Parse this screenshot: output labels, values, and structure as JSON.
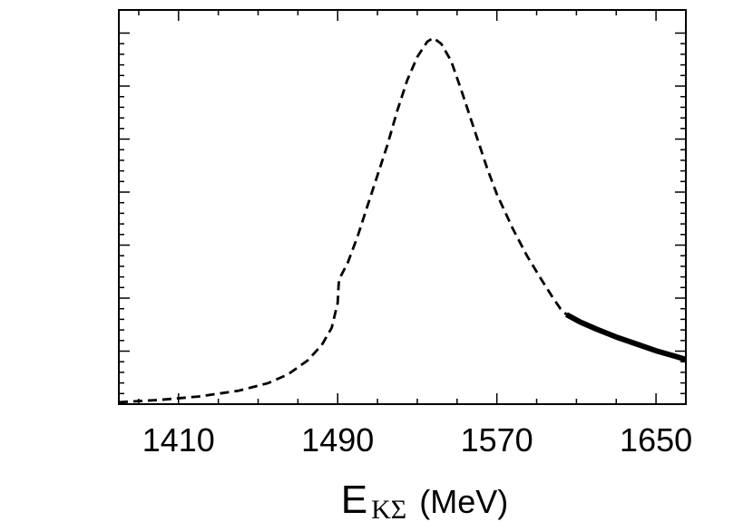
{
  "chart_data": {
    "type": "line",
    "title": "",
    "xlabel": {
      "symbol": "E",
      "subscript": "KΣ",
      "unit": "(MeV)"
    },
    "ylabel": "",
    "xlim": [
      1380,
      1665
    ],
    "ylim": [
      0,
      1
    ],
    "x_ticks": [
      1410,
      1490,
      1570,
      1650
    ],
    "y_ticks_visible_labels": false,
    "grid": false,
    "legend": "none",
    "series": [
      {
        "style": "dashed",
        "color": "#000000",
        "points": [
          [
            1380,
            0.005
          ],
          [
            1400,
            0.011
          ],
          [
            1420,
            0.02
          ],
          [
            1440,
            0.035
          ],
          [
            1455,
            0.055
          ],
          [
            1465,
            0.078
          ],
          [
            1475,
            0.115
          ],
          [
            1482,
            0.155
          ],
          [
            1487,
            0.2
          ],
          [
            1490,
            0.265
          ],
          [
            1490.5,
            0.315
          ],
          [
            1491,
            0.33
          ],
          [
            1495,
            0.37
          ],
          [
            1500,
            0.44
          ],
          [
            1505,
            0.52
          ],
          [
            1510,
            0.6
          ],
          [
            1515,
            0.68
          ],
          [
            1520,
            0.77
          ],
          [
            1525,
            0.85
          ],
          [
            1530,
            0.91
          ],
          [
            1535,
            0.95
          ],
          [
            1538,
            0.96
          ],
          [
            1542,
            0.945
          ],
          [
            1547,
            0.9
          ],
          [
            1552,
            0.825
          ],
          [
            1558,
            0.73
          ],
          [
            1565,
            0.62
          ],
          [
            1570,
            0.55
          ],
          [
            1578,
            0.46
          ],
          [
            1585,
            0.39
          ],
          [
            1592,
            0.33
          ],
          [
            1598,
            0.28
          ],
          [
            1602,
            0.25
          ],
          [
            1605,
            0.235
          ]
        ]
      },
      {
        "style": "solid",
        "color": "#000000",
        "points": [
          [
            1605,
            0.235
          ],
          [
            1612,
            0.215
          ],
          [
            1620,
            0.197
          ],
          [
            1630,
            0.176
          ],
          [
            1640,
            0.158
          ],
          [
            1650,
            0.14
          ],
          [
            1660,
            0.125
          ],
          [
            1665,
            0.117
          ]
        ]
      }
    ]
  }
}
